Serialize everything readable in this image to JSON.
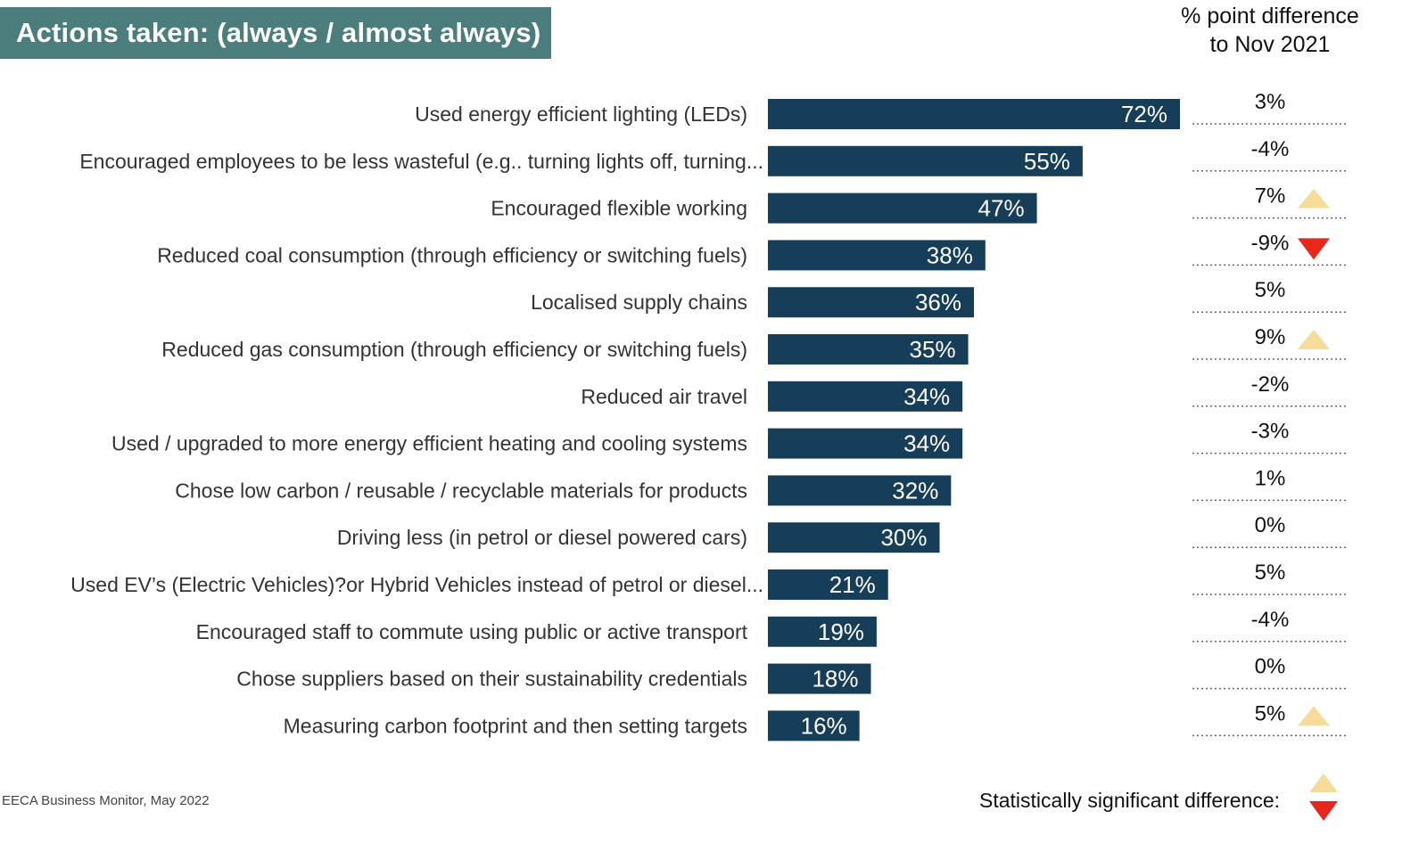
{
  "title": "Actions taken: (always / almost always)",
  "diff_header": {
    "line1": "% point difference",
    "line2": "to Nov 2021"
  },
  "source": "EECA Business Monitor, May 2022",
  "legend": {
    "label": "Statistically significant difference:",
    "up_color": "#f6dc9b",
    "down_color": "#e8261c"
  },
  "colors": {
    "bar": "#173e58",
    "title_bg": "#4a7d7c"
  },
  "chart_data": {
    "type": "bar",
    "orientation": "horizontal",
    "title": "Actions taken: (always / almost always)",
    "xlim": [
      0,
      72
    ],
    "categories": [
      "Used energy efficient lighting (LEDs)",
      "Encouraged employees to be less wasteful (e.g.. turning lights off, turning...",
      "Encouraged flexible working",
      "Reduced coal consumption (through efficiency or switching fuels)",
      "Localised supply chains",
      "Reduced gas consumption (through efficiency or switching fuels)",
      "Reduced air travel",
      "Used / upgraded to more energy efficient heating and cooling systems",
      "Chose low carbon / reusable / recyclable materials for products",
      "Driving less (in petrol or diesel powered cars)",
      "Used EV’s (Electric Vehicles)?or Hybrid Vehicles instead of petrol or diesel...",
      "Encouraged staff to commute using public or active transport",
      "Chose suppliers based on their sustainability credentials",
      "Measuring carbon footprint and then setting targets"
    ],
    "values": [
      72,
      55,
      47,
      38,
      36,
      35,
      34,
      34,
      32,
      30,
      21,
      19,
      18,
      16
    ],
    "value_labels": [
      "72%",
      "55%",
      "47%",
      "38%",
      "36%",
      "35%",
      "34%",
      "34%",
      "32%",
      "30%",
      "21%",
      "19%",
      "18%",
      "16%"
    ],
    "diff_labels": [
      "3%",
      "-4%",
      "7%",
      "-9%",
      "5%",
      "9%",
      "-2%",
      "-3%",
      "1%",
      "0%",
      "5%",
      "-4%",
      "0%",
      "5%"
    ],
    "significance": [
      "none",
      "none",
      "up",
      "down",
      "none",
      "up",
      "none",
      "none",
      "none",
      "none",
      "none",
      "none",
      "none",
      "up"
    ]
  }
}
